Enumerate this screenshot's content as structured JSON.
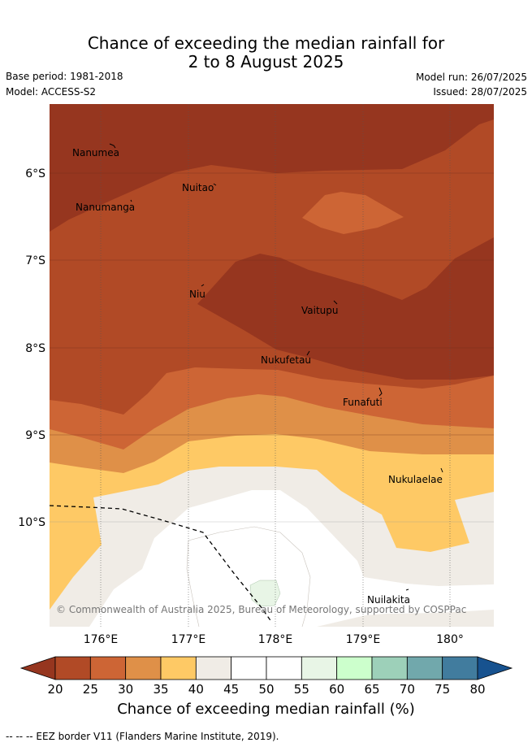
{
  "title": {
    "line1": "Chance of exceeding the median rainfall for",
    "line2": "2 to 8 August 2025"
  },
  "meta": {
    "base_period": "Base period: 1981-2018",
    "model": "Model: ACCESS-S2",
    "model_run": "Model run: 26/07/2025",
    "issued": "Issued: 28/07/2025"
  },
  "axes": {
    "lat_labels": [
      "6°S",
      "7°S",
      "8°S",
      "9°S",
      "10°S"
    ],
    "lon_labels": [
      "176°E",
      "177°E",
      "178°E",
      "179°E",
      "180°"
    ]
  },
  "places": [
    {
      "name": "Nanumea"
    },
    {
      "name": "Nuitao"
    },
    {
      "name": "Nanumanga"
    },
    {
      "name": "Niu"
    },
    {
      "name": "Vaitupu"
    },
    {
      "name": "Nukufetau"
    },
    {
      "name": "Funafuti"
    },
    {
      "name": "Nukulaelae"
    },
    {
      "name": "Nuilakita"
    }
  ],
  "copyright": "© Commonwealth of Australia 2025, Bureau of Meteorology, supported by COSPPac",
  "colorbar": {
    "title": "Chance of exceeding median rainfall (%)",
    "ticks": [
      "20",
      "25",
      "30",
      "35",
      "40",
      "45",
      "50",
      "55",
      "60",
      "65",
      "70",
      "75",
      "80"
    ],
    "colors": [
      "#b14a26",
      "#cd6535",
      "#df9048",
      "#fec965",
      "#f0ece6",
      "#ffffff",
      "#ffffff",
      "#e8f5e6",
      "#ccffcc",
      "#9dd0b9",
      "#71a8ac",
      "#417c9e"
    ],
    "under_color": "#96361f",
    "over_color": "#17528f"
  },
  "footer": "--  --  -- EEZ border V11 (Flanders Marine Institute, 2019)."
}
